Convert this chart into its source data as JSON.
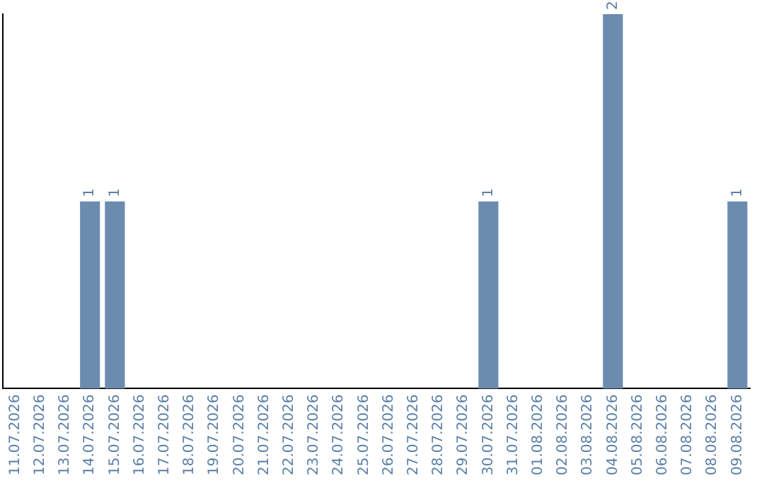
{
  "chart_data": {
    "type": "bar",
    "categories": [
      "11.07.2026",
      "12.07.2026",
      "13.07.2026",
      "14.07.2026",
      "15.07.2026",
      "16.07.2026",
      "17.07.2026",
      "18.07.2026",
      "19.07.2026",
      "20.07.2026",
      "21.07.2026",
      "22.07.2026",
      "23.07.2026",
      "24.07.2026",
      "25.07.2026",
      "26.07.2026",
      "27.07.2026",
      "28.07.2026",
      "29.07.2026",
      "30.07.2026",
      "31.07.2026",
      "01.08.2026",
      "02.08.2026",
      "03.08.2026",
      "04.08.2026",
      "05.08.2026",
      "06.08.2026",
      "07.08.2026",
      "08.08.2026",
      "09.08.2026"
    ],
    "values": [
      0,
      0,
      0,
      1,
      1,
      0,
      0,
      0,
      0,
      0,
      0,
      0,
      0,
      0,
      0,
      0,
      0,
      0,
      0,
      1,
      0,
      0,
      0,
      0,
      2,
      0,
      0,
      0,
      0,
      1
    ],
    "color": "#6b8cae",
    "value_labels": [
      null,
      null,
      null,
      "1",
      "1",
      null,
      null,
      null,
      null,
      null,
      null,
      null,
      null,
      null,
      null,
      null,
      null,
      null,
      null,
      "1",
      null,
      null,
      null,
      null,
      "2",
      null,
      null,
      null,
      null,
      "1"
    ],
    "grid": false
  }
}
